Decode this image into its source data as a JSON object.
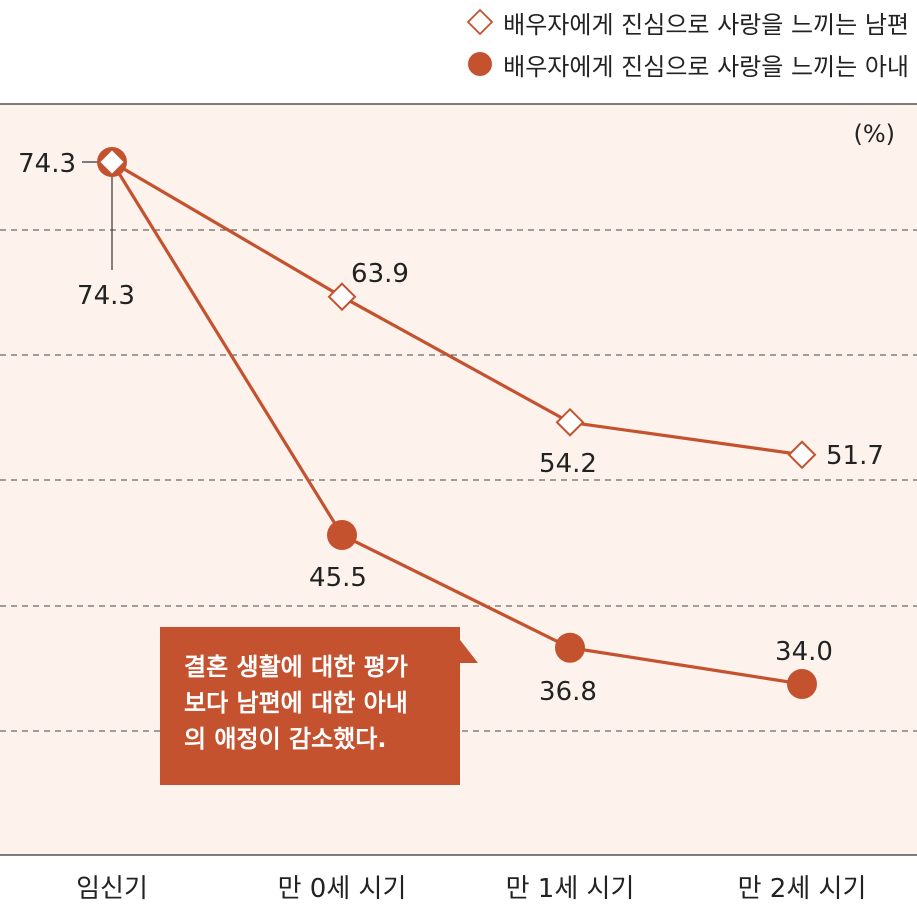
{
  "chart_data": {
    "type": "line",
    "unit_label": "(%)",
    "categories": [
      "임신기",
      "만 0세 시기",
      "만 1세 시기",
      "만 2세 시기"
    ],
    "ylim": [
      20,
      80
    ],
    "series": [
      {
        "name": "배우자에게 진심으로 사랑을 느끼는 남편",
        "marker": "diamond-open",
        "values": [
          74.3,
          63.9,
          54.2,
          51.7
        ],
        "labels": [
          "74.3",
          "63.9",
          "54.2",
          "51.7"
        ]
      },
      {
        "name": "배우자에게 진심으로 사랑을 느끼는 아내",
        "marker": "circle-filled",
        "values": [
          74.3,
          45.5,
          36.8,
          34.0
        ],
        "labels": [
          "74.3",
          "45.5",
          "36.8",
          "34.0"
        ]
      }
    ],
    "grid": "dashed horizontal",
    "legend_position": "top-right"
  },
  "callout": {
    "lines": [
      "결혼 생활에 대한 평가",
      "보다 남편에 대한 아내",
      "의 애정이 감소했다."
    ]
  },
  "colors": {
    "line": "#c4522f",
    "plot_background": "#fdf3ec",
    "callout_background": "#c4522f",
    "callout_text": "#ffffff"
  }
}
